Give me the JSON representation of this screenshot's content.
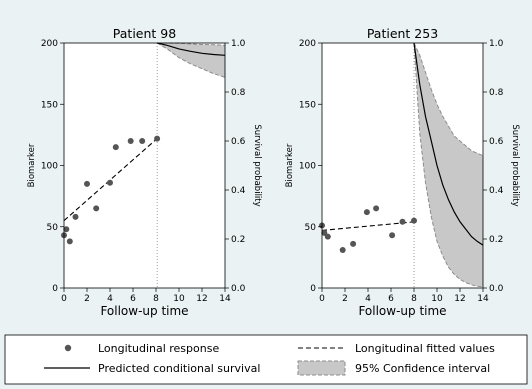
{
  "colors": {
    "background": "#eaf2f3",
    "plot_background": "#ffffff",
    "ci_fill": "#c8c8c8",
    "ci_edge": "#8c8c8c",
    "points": "#555555",
    "lines": "#000000"
  },
  "legend": {
    "placement": "bottom",
    "items": [
      {
        "label": "Longitudinal response",
        "kind": "point"
      },
      {
        "label": "Longitudinal fitted values",
        "kind": "dashed-line"
      },
      {
        "label": "Predicted conditional survival",
        "kind": "solid-line"
      },
      {
        "label": "95% Confidence interval",
        "kind": "band"
      }
    ]
  },
  "chart_data": [
    {
      "type": "scatter",
      "title": "Patient 98",
      "xlabel": "Follow-up time",
      "ylabel_left": "Biomarker",
      "ylabel_right": "Survival probability",
      "xlim": [
        0,
        14
      ],
      "ylim_left": [
        0,
        200
      ],
      "ylim_right": [
        0,
        1
      ],
      "xticks": [
        0,
        2,
        4,
        6,
        8,
        10,
        12,
        14
      ],
      "yticks_left": [
        0,
        50,
        100,
        150,
        200
      ],
      "yticks_right": [
        "0.0",
        "0.2",
        "0.4",
        "0.6",
        "0.8",
        "1.0"
      ],
      "landmark_time": 8.1,
      "grid": false,
      "biomarker_points": [
        [
          0,
          43
        ],
        [
          0.2,
          48
        ],
        [
          0.5,
          38
        ],
        [
          1,
          58
        ],
        [
          2,
          85
        ],
        [
          2.8,
          65
        ],
        [
          4,
          86
        ],
        [
          4.5,
          115
        ],
        [
          5.8,
          120
        ],
        [
          6.8,
          120
        ],
        [
          8.1,
          122
        ]
      ],
      "fitted_line": [
        [
          0,
          55
        ],
        [
          8.1,
          122
        ]
      ],
      "survival_curve": [
        [
          8.1,
          1.0
        ],
        [
          9,
          0.99
        ],
        [
          10,
          0.976
        ],
        [
          11,
          0.966
        ],
        [
          12,
          0.958
        ],
        [
          13,
          0.953
        ],
        [
          14,
          0.95
        ]
      ],
      "ci_upper": [
        [
          8.1,
          1.0
        ],
        [
          9,
          1.0
        ],
        [
          10,
          0.999
        ],
        [
          11,
          0.996
        ],
        [
          12,
          0.994
        ],
        [
          13,
          0.993
        ],
        [
          14,
          0.99
        ]
      ],
      "ci_lower": [
        [
          8.1,
          1.0
        ],
        [
          9,
          0.975
        ],
        [
          10,
          0.94
        ],
        [
          11,
          0.915
        ],
        [
          12,
          0.895
        ],
        [
          13,
          0.875
        ],
        [
          14,
          0.86
        ]
      ]
    },
    {
      "type": "scatter",
      "title": "Patient 253",
      "xlabel": "Follow-up time",
      "ylabel_left": "Biomarker",
      "ylabel_right": "Survival probability",
      "xlim": [
        0,
        14
      ],
      "ylim_left": [
        0,
        200
      ],
      "ylim_right": [
        0,
        1
      ],
      "xticks": [
        0,
        2,
        4,
        6,
        8,
        10,
        12,
        14
      ],
      "yticks_left": [
        0,
        50,
        100,
        150,
        200
      ],
      "yticks_right": [
        "0.0",
        "0.2",
        "0.4",
        "0.6",
        "0.8",
        "1.0"
      ],
      "landmark_time": 8.0,
      "grid": false,
      "biomarker_points": [
        [
          0,
          51
        ],
        [
          0.2,
          45
        ],
        [
          0.5,
          42
        ],
        [
          1.8,
          31
        ],
        [
          2.7,
          36
        ],
        [
          3.9,
          62
        ],
        [
          4.7,
          65
        ],
        [
          6.1,
          43
        ],
        [
          7.0,
          54
        ],
        [
          8.0,
          55
        ]
      ],
      "fitted_line": [
        [
          0,
          47
        ],
        [
          8.0,
          54
        ]
      ],
      "survival_curve": [
        [
          8.0,
          1.0
        ],
        [
          8.5,
          0.83
        ],
        [
          9,
          0.7
        ],
        [
          9.5,
          0.6
        ],
        [
          10,
          0.5
        ],
        [
          10.5,
          0.42
        ],
        [
          11,
          0.36
        ],
        [
          11.5,
          0.31
        ],
        [
          12,
          0.27
        ],
        [
          12.5,
          0.24
        ],
        [
          13,
          0.21
        ],
        [
          13.5,
          0.19
        ],
        [
          14,
          0.175
        ]
      ],
      "ci_upper": [
        [
          8.0,
          1.0
        ],
        [
          8.5,
          0.95
        ],
        [
          9,
          0.88
        ],
        [
          9.5,
          0.81
        ],
        [
          10,
          0.75
        ],
        [
          10.5,
          0.7
        ],
        [
          11,
          0.66
        ],
        [
          11.5,
          0.62
        ],
        [
          12,
          0.6
        ],
        [
          12.5,
          0.58
        ],
        [
          13,
          0.56
        ],
        [
          13.5,
          0.55
        ],
        [
          14,
          0.54
        ]
      ],
      "ci_lower": [
        [
          8.0,
          1.0
        ],
        [
          8.5,
          0.63
        ],
        [
          9,
          0.43
        ],
        [
          9.5,
          0.29
        ],
        [
          10,
          0.19
        ],
        [
          10.5,
          0.13
        ],
        [
          11,
          0.085
        ],
        [
          11.5,
          0.055
        ],
        [
          12,
          0.035
        ],
        [
          12.5,
          0.022
        ],
        [
          13,
          0.013
        ],
        [
          13.5,
          0.007
        ],
        [
          14,
          0.004
        ]
      ]
    }
  ]
}
